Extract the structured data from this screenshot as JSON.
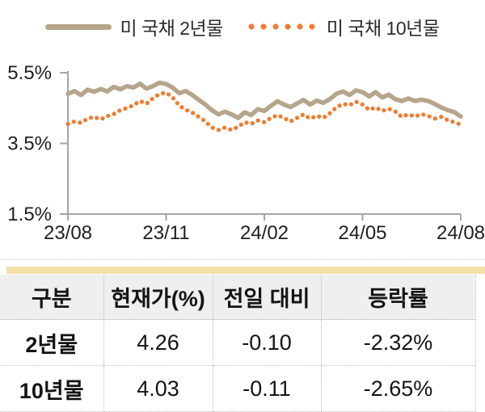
{
  "colors": {
    "tan": "#b5a58b",
    "orange": "#ee7d31",
    "axis": "#a6a6a6",
    "accent_bar": "#f3e0a7",
    "header_bg": "#efefef",
    "text": "#1f1f1f"
  },
  "legend": {
    "items": [
      {
        "label": "미 국채 2년물",
        "series_key": "us2y",
        "style": "solid"
      },
      {
        "label": "미 국채 10년물",
        "series_key": "us10y",
        "style": "dotted"
      }
    ]
  },
  "chart_data": {
    "type": "line",
    "title": "",
    "xlabel": "",
    "ylabel": "",
    "xlim": [
      0,
      12
    ],
    "ylim": [
      1.5,
      5.5
    ],
    "grid": false,
    "legend_position": "top",
    "x_unit": "months since 2023-08",
    "x_ticks": [
      {
        "t": 0,
        "label": "23/08"
      },
      {
        "t": 3,
        "label": "23/11"
      },
      {
        "t": 6,
        "label": "24/02"
      },
      {
        "t": 9,
        "label": "24/05"
      },
      {
        "t": 12,
        "label": "24/08"
      }
    ],
    "y_ticks": [
      {
        "v": 5.5,
        "label": "5.5%"
      },
      {
        "v": 3.5,
        "label": "3.5%"
      },
      {
        "v": 1.5,
        "label": "1.5%"
      }
    ],
    "x_months": [
      0,
      0.2,
      0.4,
      0.6,
      0.8,
      1,
      1.2,
      1.4,
      1.6,
      1.8,
      2,
      2.2,
      2.4,
      2.6,
      2.8,
      3,
      3.2,
      3.4,
      3.6,
      3.8,
      4,
      4.2,
      4.4,
      4.6,
      4.8,
      5,
      5.2,
      5.4,
      5.6,
      5.8,
      6,
      6.2,
      6.4,
      6.6,
      6.8,
      7,
      7.2,
      7.4,
      7.6,
      7.8,
      8,
      8.2,
      8.4,
      8.6,
      8.8,
      9,
      9.2,
      9.4,
      9.6,
      9.8,
      10,
      10.2,
      10.4,
      10.6,
      10.8,
      11,
      11.2,
      11.4,
      11.6,
      11.8,
      12
    ],
    "series": [
      {
        "name": "미 국채 2년물",
        "key": "us2y",
        "style": "solid",
        "color_key": "tan",
        "values": [
          4.9,
          4.98,
          4.87,
          5.02,
          4.96,
          5.04,
          4.97,
          5.1,
          5.03,
          5.12,
          5.08,
          5.19,
          5.05,
          5.12,
          5.22,
          5.18,
          5.08,
          4.92,
          4.98,
          4.87,
          4.73,
          4.6,
          4.44,
          4.32,
          4.4,
          4.32,
          4.22,
          4.38,
          4.3,
          4.47,
          4.42,
          4.56,
          4.69,
          4.6,
          4.53,
          4.63,
          4.73,
          4.6,
          4.71,
          4.65,
          4.75,
          4.9,
          4.97,
          4.87,
          5.0,
          4.95,
          4.83,
          4.95,
          4.8,
          4.88,
          4.75,
          4.7,
          4.77,
          4.7,
          4.74,
          4.7,
          4.62,
          4.52,
          4.44,
          4.39,
          4.26
        ]
      },
      {
        "name": "미 국채 10년물",
        "key": "us10y",
        "style": "dotted",
        "color_key": "orange",
        "values": [
          4.05,
          4.12,
          4.08,
          4.2,
          4.25,
          4.18,
          4.27,
          4.33,
          4.44,
          4.5,
          4.58,
          4.7,
          4.62,
          4.78,
          4.9,
          4.93,
          4.8,
          4.57,
          4.45,
          4.37,
          4.25,
          4.12,
          3.95,
          3.88,
          3.95,
          3.88,
          3.97,
          4.1,
          4.05,
          4.15,
          4.1,
          4.22,
          4.3,
          4.22,
          4.12,
          4.22,
          4.32,
          4.2,
          4.28,
          4.22,
          4.35,
          4.52,
          4.62,
          4.58,
          4.68,
          4.6,
          4.45,
          4.52,
          4.42,
          4.48,
          4.4,
          4.25,
          4.32,
          4.26,
          4.33,
          4.28,
          4.2,
          4.25,
          4.16,
          4.1,
          4.03
        ]
      }
    ]
  },
  "table": {
    "headers": [
      "구분",
      "현재가(%)",
      "전일 대비",
      "등락률"
    ],
    "rows": [
      {
        "name": "2년물",
        "price": "4.26",
        "change": "-0.10",
        "pct": "-2.32%"
      },
      {
        "name": "10년물",
        "price": "4.03",
        "change": "-0.11",
        "pct": "-2.65%"
      }
    ]
  }
}
